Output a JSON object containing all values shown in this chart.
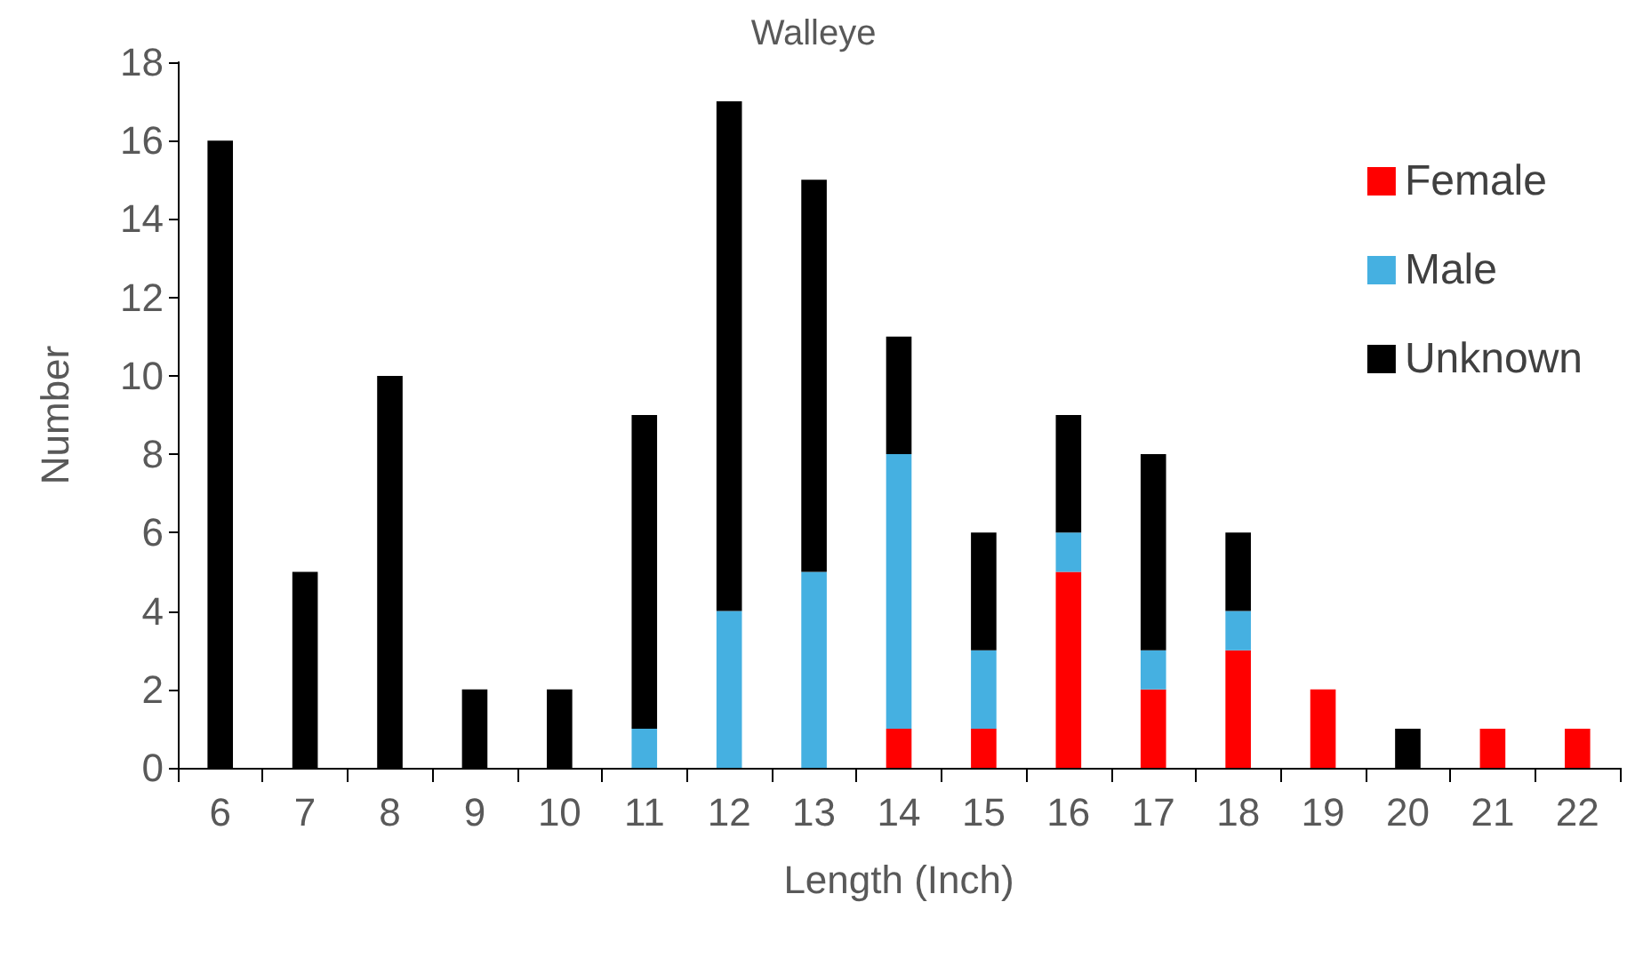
{
  "chart_data": {
    "type": "bar",
    "title": "Walleye",
    "xlabel": "Length (Inch)",
    "ylabel": "Number",
    "categories": [
      "6",
      "7",
      "8",
      "9",
      "10",
      "11",
      "12",
      "13",
      "14",
      "15",
      "16",
      "17",
      "18",
      "19",
      "20",
      "21",
      "22"
    ],
    "stacked": true,
    "series": [
      {
        "name": "Female",
        "color": "#ff0000",
        "values": [
          null,
          null,
          null,
          null,
          null,
          null,
          null,
          null,
          1,
          1,
          5,
          2,
          3,
          2,
          null,
          1,
          1
        ]
      },
      {
        "name": "Male",
        "color": "#45b0e1",
        "values": [
          null,
          null,
          null,
          null,
          null,
          1,
          4,
          5,
          7,
          2,
          1,
          1,
          1,
          null,
          null,
          null,
          null
        ]
      },
      {
        "name": "Unknown",
        "color": "#000000",
        "values": [
          16,
          5,
          10,
          2,
          2,
          8,
          13,
          10,
          3,
          3,
          3,
          5,
          2,
          null,
          1,
          null,
          null
        ]
      }
    ],
    "ylim": [
      0,
      18
    ],
    "yticks": [
      0,
      2,
      4,
      6,
      8,
      10,
      12,
      14,
      16,
      18
    ],
    "grid": false,
    "legend": "top right"
  }
}
